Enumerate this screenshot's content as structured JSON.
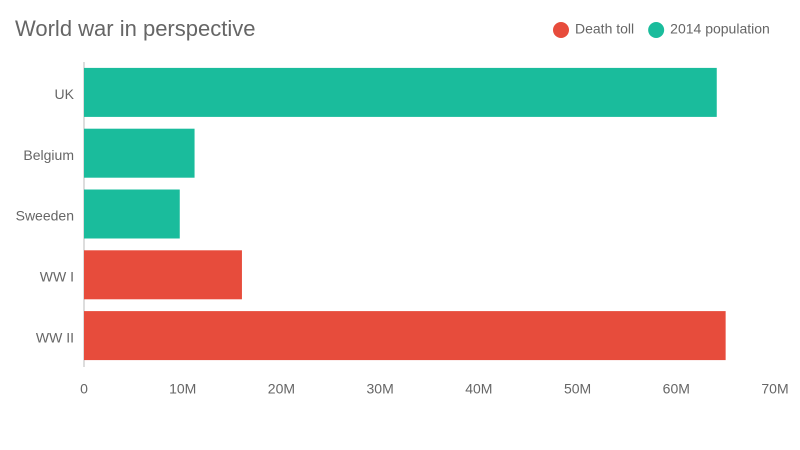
{
  "chart_data": {
    "type": "hbar",
    "title": "World war in perspective",
    "categories": [
      "UK",
      "Belgium",
      "Sweeden",
      "WW I",
      "WW II"
    ],
    "series": [
      {
        "name": "Death toll",
        "color": "#e74c3c",
        "values": [
          null,
          null,
          null,
          16000000,
          65000000
        ]
      },
      {
        "name": "2014 population",
        "color": "#1abc9c",
        "values": [
          64100000,
          11200000,
          9700000,
          null,
          null
        ]
      }
    ],
    "xlim": [
      0,
      70000000
    ],
    "xticks": [
      0,
      {
        "value": 10000000,
        "label": "10M"
      },
      {
        "value": 20000000,
        "label": "20M"
      },
      {
        "value": 30000000,
        "label": "30M"
      },
      {
        "value": 40000000,
        "label": "40M"
      },
      {
        "value": 50000000,
        "label": "50M"
      },
      {
        "value": 60000000,
        "label": "60M"
      },
      {
        "value": 70000000,
        "label": "70M"
      }
    ],
    "legend": "top-right"
  }
}
